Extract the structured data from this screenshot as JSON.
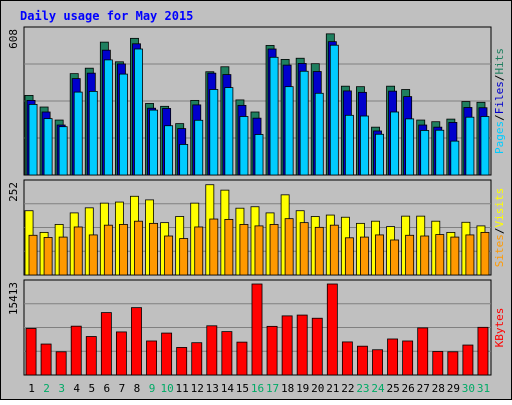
{
  "chart_data": [
    {
      "type": "bar",
      "title": "Daily usage for May 2015",
      "categories": [
        "1",
        "2",
        "3",
        "4",
        "5",
        "6",
        "7",
        "8",
        "9",
        "10",
        "11",
        "12",
        "13",
        "14",
        "15",
        "16",
        "17",
        "18",
        "19",
        "20",
        "21",
        "22",
        "23",
        "24",
        "25",
        "26",
        "27",
        "28",
        "29",
        "30",
        "31"
      ],
      "weekend_days": [
        "2",
        "3",
        "9",
        "10",
        "16",
        "17",
        "23",
        "24",
        "30",
        "31"
      ],
      "ylim": [
        0,
        608
      ],
      "y_tick_label": "608",
      "axis_label_parts": [
        "Pages",
        "Files",
        "Hits"
      ],
      "series": [
        {
          "name": "Hits",
          "color": "#1f7f5f",
          "values": [
            336,
            287,
            232,
            428,
            451,
            561,
            478,
            577,
            302,
            290,
            217,
            315,
            436,
            457,
            317,
            266,
            547,
            488,
            493,
            470,
            596,
            375,
            373,
            202,
            375,
            361,
            232,
            225,
            236,
            310,
            307
          ]
        },
        {
          "name": "Files",
          "color": "#0000cc",
          "values": [
            315,
            266,
            211,
            407,
            430,
            527,
            469,
            554,
            282,
            281,
            196,
            296,
            430,
            424,
            294,
            240,
            532,
            464,
            471,
            437,
            563,
            355,
            349,
            186,
            354,
            331,
            211,
            202,
            222,
            285,
            284
          ]
        },
        {
          "name": "Pages",
          "color": "#00ccff",
          "values": [
            298,
            238,
            204,
            350,
            353,
            486,
            426,
            532,
            274,
            208,
            129,
            231,
            361,
            369,
            247,
            171,
            497,
            373,
            438,
            345,
            548,
            252,
            249,
            172,
            266,
            237,
            188,
            189,
            143,
            244,
            247
          ]
        }
      ]
    },
    {
      "type": "bar",
      "ylim": [
        0,
        252
      ],
      "y_tick_label": "252",
      "axis_label_parts": [
        "Sites",
        "Visits"
      ],
      "series": [
        {
          "name": "Visits",
          "color": "#ffff00",
          "values": [
            178,
            118,
            140,
            172,
            186,
            199,
            202,
            218,
            208,
            145,
            162,
            199,
            250,
            235,
            185,
            189,
            172,
            222,
            178,
            162,
            166,
            160,
            143,
            149,
            134,
            163,
            163,
            149,
            118,
            146,
            136
          ]
        },
        {
          "name": "Sites",
          "color": "#ff9900",
          "values": [
            110,
            104,
            105,
            133,
            111,
            138,
            140,
            149,
            143,
            108,
            101,
            133,
            155,
            154,
            140,
            136,
            140,
            156,
            145,
            132,
            138,
            103,
            105,
            111,
            97,
            110,
            108,
            112,
            105,
            111,
            118
          ]
        }
      ]
    },
    {
      "type": "bar",
      "ylim": [
        0,
        15413
      ],
      "y_tick_label": "15413",
      "axis_label_parts": [
        "KBytes"
      ],
      "series": [
        {
          "name": "KBytes",
          "color": "#ff0000",
          "values": [
            7883,
            5245,
            3929,
            8271,
            6520,
            10573,
            7296,
            11411,
            5763,
            7101,
            4668,
            5472,
            8336,
            7351,
            5569,
            15413,
            8240,
            10015,
            10151,
            9615,
            15413,
            5603,
            4881,
            4278,
            6101,
            5763,
            7975,
            3983,
            3929,
            5074,
            8076
          ]
        }
      ]
    }
  ]
}
